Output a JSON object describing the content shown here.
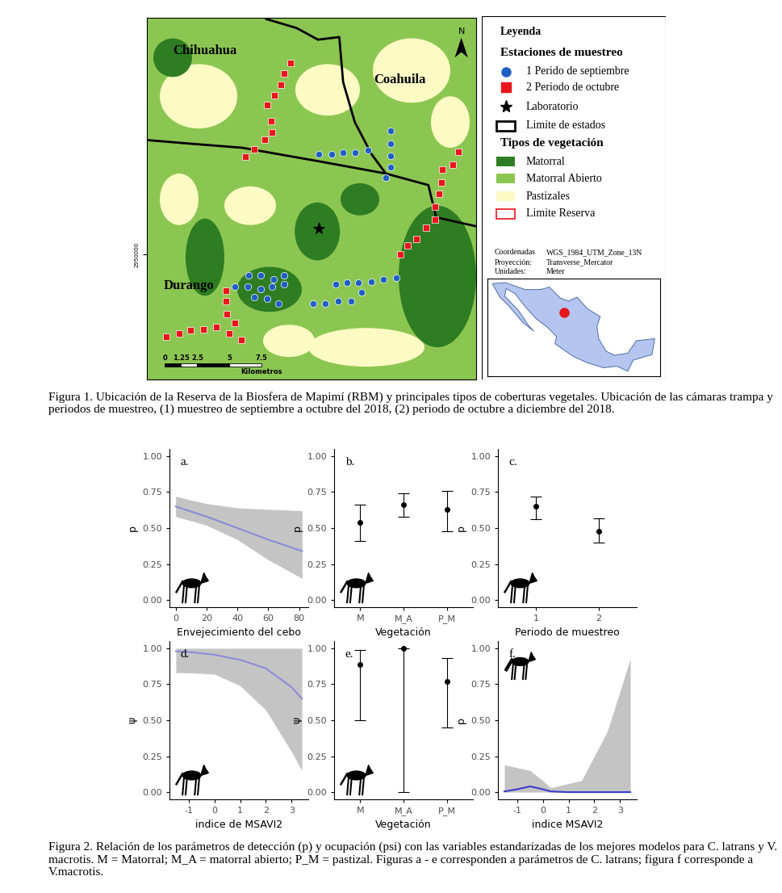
{
  "map": {
    "xlim": [
      0,
      25.5
    ],
    "ylim": [
      0,
      28.1
    ],
    "yticks": [
      {
        "value": 9.7,
        "label": "2950000"
      }
    ],
    "tick_labels": "y",
    "state_labels": [
      "Chihuahua",
      "Coahuila",
      "Durango"
    ],
    "north": "N",
    "series": [
      {
        "name": "1 Perido de septiembre",
        "color": "#1f5fc4",
        "marker": "circle",
        "x": [
          13.3,
          14.3,
          15.2,
          16.1,
          17.1,
          18.9,
          18.9,
          18.9,
          18.9,
          18.5,
          7.9,
          8.8,
          9.8,
          10.6,
          6.8,
          7.8,
          8.8,
          9.7,
          8.3,
          9.3,
          10.2,
          10.6,
          12.9,
          13.8,
          14.8,
          15.8,
          16.6,
          14.6,
          15.5,
          16.4,
          17.4,
          18.3,
          19.3
        ],
        "y": [
          17.5,
          17.5,
          17.6,
          17.6,
          17.8,
          19.3,
          18.3,
          17.4,
          16.5,
          15.7,
          8.1,
          8.1,
          7.8,
          7.4,
          7.2,
          7.2,
          7.0,
          7.2,
          6.4,
          6.3,
          5.9,
          8.1,
          5.9,
          5.9,
          6.1,
          6.1,
          6.8,
          7.4,
          7.5,
          7.5,
          7.6,
          7.8,
          7.9
        ]
      },
      {
        "name": "2 Periodo de octubre",
        "color": "#e8151b",
        "marker": "square",
        "x": [
          11.1,
          10.6,
          10.4,
          9.9,
          9.3,
          9.6,
          9.7,
          9.1,
          8.3,
          7.6,
          24.1,
          23.7,
          22.9,
          22.8,
          22.6,
          22.3,
          22.3,
          21.6,
          20.9,
          20.2,
          19.6,
          6.1,
          6.1,
          6.2,
          6.8,
          7.3,
          6.4,
          5.4,
          4.4,
          3.4,
          2.5,
          1.5
        ],
        "y": [
          24.6,
          23.8,
          22.9,
          22.1,
          21.3,
          20.1,
          19.2,
          18.6,
          17.9,
          17.3,
          17.7,
          16.7,
          16.3,
          15.3,
          14.4,
          13.4,
          12.4,
          11.8,
          10.9,
          10.4,
          9.7,
          6.9,
          6.1,
          5.1,
          4.4,
          3.1,
          3.6,
          4.1,
          3.9,
          3.8,
          3.6,
          3.3
        ]
      },
      {
        "name": "Laboratorio",
        "color": "#000000",
        "marker": "star",
        "x": [
          13.3
        ],
        "y": [
          11.7
        ]
      }
    ],
    "boundaries": {
      "name": "Limite de estados",
      "color": "#000000",
      "lines": [
        {
          "x": [
            9.25,
            11.6,
            13.25,
            14.9,
            15.2,
            16.1,
            17.4,
            18.5
          ],
          "y": [
            28.0,
            27.3,
            26.4,
            26.6,
            23.1,
            20.0,
            17.5,
            16.0
          ]
        },
        {
          "x": [
            0,
            3.6,
            7.4,
            13.6,
            18.5,
            21.8,
            22.4,
            25.5
          ],
          "y": [
            18.6,
            18.3,
            18.0,
            16.9,
            16.0,
            15.1,
            12.6,
            11.9
          ]
        }
      ]
    },
    "vegetation_title": "Tipos de vegetación",
    "vegetation": [
      {
        "name": "Matorral",
        "color": "#2f7d22"
      },
      {
        "name": "Matorral Abierto",
        "color": "#8cc652"
      },
      {
        "name": "Pastizales",
        "color": "#fdfbc4"
      }
    ],
    "reserve": {
      "name": "Limite Reserva",
      "color": "#e8151b"
    },
    "legend_title": "Leyenda",
    "stations_title": "Estaciones de muestreo",
    "scale_bar": {
      "ticks": [
        0,
        1.25,
        2.5,
        5,
        7.5
      ],
      "label": "Kilometros"
    },
    "projection": [
      [
        "Coordenadas",
        "WGS_1984_UTM_Zone_13N"
      ],
      [
        "Proyección:",
        "Transverse_Mercator"
      ],
      [
        "Unidades:",
        "Meter"
      ]
    ],
    "inset": {
      "x": -103.8,
      "y": 26.7,
      "color": "#e8151b"
    }
  },
  "captions": {
    "figure1": "Figura 1. Ubicación de la Reserva de la Biosfera de Mapimí (RBM) y principales tipos de coberturas vegetales. Ubicación de las cámaras trampa y periodos de muestreo, (1) muestreo de septiembre a octubre del 2018, (2) periodo de octubre a diciembre del 2018.",
    "figure2": "Figura 2. Relación de los parámetros de detección (p) y ocupación (psi) con las variables estandarizadas de los mejores modelos para C. latrans y V. macrotis. M = Matorral; M_A = matorral abierto; P_M = pastizal. Figuras a - e corresponden a parámetros de C. latrans; figura f corresponde a V.macrotis."
  },
  "chart_data": [
    {
      "type": "line",
      "annotation": "a.",
      "xlabel": "Envejecimiento del cebo",
      "ylabel": "p",
      "color": "#8c8cd9",
      "x": [
        0,
        20,
        40,
        60,
        82
      ],
      "values": [
        0.65,
        0.58,
        0.5,
        0.42,
        0.34
      ],
      "ci_lower": [
        0.58,
        0.52,
        0.42,
        0.28,
        0.15
      ],
      "ci_upper": [
        0.72,
        0.67,
        0.64,
        0.63,
        0.62
      ],
      "xlim": [
        -4,
        86
      ],
      "xticks": [
        0,
        20,
        40,
        60,
        80
      ],
      "ylim": [
        -0.05,
        1.05
      ],
      "yticks": [
        {
          "value": 0,
          "label": "0.00"
        },
        {
          "value": 0.25,
          "label": "0.25"
        },
        {
          "value": 0.5,
          "label": "0.50"
        },
        {
          "value": 0.75,
          "label": "0.75"
        },
        {
          "value": 1,
          "label": "1.00"
        }
      ]
    },
    {
      "type": "errorbar",
      "annotation": "b.",
      "xlabel": "Vegetación",
      "ylabel": "p",
      "color": "#000000",
      "categories": [
        "M",
        "M_A",
        "P_M"
      ],
      "values": [
        0.54,
        0.66,
        0.63
      ],
      "ci_lower": [
        0.41,
        0.58,
        0.48
      ],
      "ci_upper": [
        0.66,
        0.74,
        0.76
      ],
      "ylim": [
        -0.05,
        1.05
      ],
      "yticks": [
        {
          "value": 0,
          "label": "0.00"
        },
        {
          "value": 0.25,
          "label": "0.25"
        },
        {
          "value": 0.5,
          "label": "0.50"
        },
        {
          "value": 0.75,
          "label": "0.75"
        },
        {
          "value": 1,
          "label": "1.00"
        }
      ]
    },
    {
      "type": "errorbar",
      "annotation": "c.",
      "xlabel": "Periodo de muestreo",
      "ylabel": "p",
      "color": "#000000",
      "categories": [
        "1",
        "2"
      ],
      "values": [
        0.65,
        0.48
      ],
      "ci_lower": [
        0.56,
        0.4
      ],
      "ci_upper": [
        0.72,
        0.57
      ],
      "ylim": [
        -0.05,
        1.05
      ],
      "yticks": [
        {
          "value": 0,
          "label": "0.00"
        },
        {
          "value": 0.25,
          "label": "0.25"
        },
        {
          "value": 0.5,
          "label": "0.50"
        },
        {
          "value": 0.75,
          "label": "0.75"
        },
        {
          "value": 1,
          "label": "1.00"
        }
      ]
    },
    {
      "type": "line",
      "annotation": "d.",
      "xlabel": "indice de MSAVI2",
      "ylabel": "ψ",
      "color": "#8c8cd9",
      "x": [
        -1.5,
        -1,
        0,
        1,
        2,
        3,
        3.4
      ],
      "values": [
        0.98,
        0.975,
        0.955,
        0.92,
        0.86,
        0.73,
        0.65
      ],
      "ci_lower": [
        0.83,
        0.83,
        0.82,
        0.74,
        0.57,
        0.28,
        0.15
      ],
      "ci_upper": [
        1.0,
        1.0,
        1.0,
        1.0,
        1.0,
        1.0,
        1.0
      ],
      "xlim": [
        -1.75,
        3.65
      ],
      "xticks": [
        -1,
        0,
        1,
        2,
        3
      ],
      "ylim": [
        -0.05,
        1.05
      ],
      "yticks": [
        {
          "value": 0,
          "label": "0.00"
        },
        {
          "value": 0.25,
          "label": "0.25"
        },
        {
          "value": 0.5,
          "label": "0.50"
        },
        {
          "value": 0.75,
          "label": "0.75"
        },
        {
          "value": 1,
          "label": "1.00"
        }
      ]
    },
    {
      "type": "errorbar",
      "annotation": "e.",
      "xlabel": "Vegetación",
      "ylabel": "ψ",
      "color": "#000000",
      "categories": [
        "M",
        "M_A",
        "P_M"
      ],
      "values": [
        0.89,
        1.0,
        0.77
      ],
      "ci_lower": [
        0.5,
        0.0,
        0.45
      ],
      "ci_upper": [
        0.99,
        1.0,
        0.93
      ],
      "ylim": [
        -0.05,
        1.05
      ],
      "yticks": [
        {
          "value": 0,
          "label": "0.00"
        },
        {
          "value": 0.25,
          "label": "0.25"
        },
        {
          "value": 0.5,
          "label": "0.50"
        },
        {
          "value": 0.75,
          "label": "0.75"
        },
        {
          "value": 1,
          "label": "1.00"
        }
      ]
    },
    {
      "type": "line",
      "annotation": "f.",
      "xlabel": "indice MSAVI2",
      "ylabel": "p",
      "color": "#3b3bcc",
      "x": [
        -1.5,
        -1,
        -0.5,
        0,
        0.3,
        1,
        1.5,
        2,
        2.5,
        3,
        3.4
      ],
      "values": [
        0.005,
        0.02,
        0.04,
        0.02,
        0.005,
        0,
        0,
        0,
        0,
        0,
        0
      ],
      "ci_lower": [
        0,
        0,
        0,
        0,
        0,
        0,
        0,
        0,
        0,
        0,
        0
      ],
      "ci_upper": [
        0.19,
        0.17,
        0.15,
        0.08,
        0.03,
        0.06,
        0.08,
        0.25,
        0.42,
        0.7,
        0.93
      ],
      "xlim": [
        -1.75,
        3.65
      ],
      "xticks": [
        -1,
        0,
        1,
        2,
        3
      ],
      "ylim": [
        -0.05,
        1.05
      ],
      "yticks": [
        {
          "value": 0,
          "label": "0.00"
        },
        {
          "value": 0.25,
          "label": "0.25"
        },
        {
          "value": 0.5,
          "label": "0.50"
        },
        {
          "value": 0.75,
          "label": "0.75"
        },
        {
          "value": 1,
          "label": "1.00"
        }
      ]
    }
  ]
}
